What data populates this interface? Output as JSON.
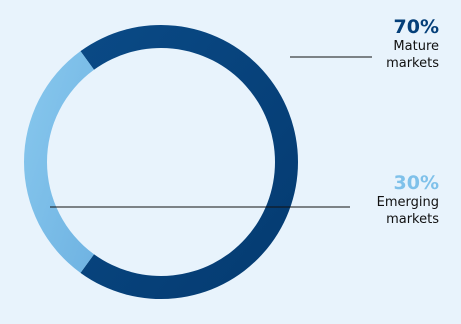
{
  "chart_data": {
    "type": "pie",
    "style": "donut",
    "title": "",
    "slices": [
      {
        "percent_label": "70%",
        "label_lines": [
          "Mature",
          "markets"
        ],
        "value": 70,
        "color": "#043f79",
        "color_dark": "#0a3466"
      },
      {
        "percent_label": "30%",
        "label_lines": [
          "Emerging",
          "markets"
        ],
        "value": 30,
        "color": "#7fc1ea",
        "color_dark": "#74b5e3"
      }
    ],
    "legend_placement": "right",
    "background": "#e8f3fc"
  }
}
